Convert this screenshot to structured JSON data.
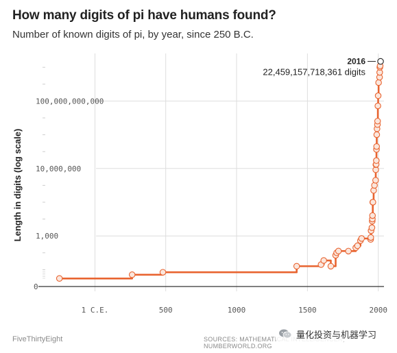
{
  "chart_data": {
    "type": "line",
    "title": "How many digits of pi have humans found?",
    "subtitle": "Number of known digits of pi, by year, since 250 B.C.",
    "xlabel": "",
    "ylabel": "Length in digits (log scale)",
    "yscale": "log",
    "xlim": [
      -350,
      2040
    ],
    "ylim": [
      1,
      10000000000000
    ],
    "grid": true,
    "x_ticks": [
      {
        "value": 1,
        "label": "1 C.E."
      },
      {
        "value": 500,
        "label": "500"
      },
      {
        "value": 1000,
        "label": "1000"
      },
      {
        "value": 1500,
        "label": "1500"
      },
      {
        "value": 2000,
        "label": "2000"
      }
    ],
    "y_ticks": [
      {
        "value": 1,
        "label": "0"
      },
      {
        "value": 1000,
        "label": "1,000"
      },
      {
        "value": 10000000,
        "label": "10,000,000"
      },
      {
        "value": 100000000000,
        "label": "100,000,000,000"
      }
    ],
    "series": [
      {
        "color": "#e8632f",
        "x": [
          -250,
          263,
          480,
          1424,
          1596,
          1615,
          1665,
          1699,
          1706,
          1719,
          1789,
          1841,
          1853,
          1874,
          1882,
          1946,
          1947,
          1949,
          1955,
          1957,
          1958,
          1959,
          1961,
          1962,
          1967,
          1973,
          1981,
          1982,
          1983,
          1985,
          1986,
          1987,
          1988,
          1989,
          1991,
          1994,
          1995,
          1997,
          1999,
          2002,
          2009,
          2010,
          2011,
          2013,
          2016
        ],
        "y": [
          3,
          5,
          7,
          16,
          20,
          35,
          16,
          71,
          100,
          127,
          126,
          200,
          261,
          527,
          707,
          620,
          808,
          2037,
          3089,
          7480,
          10000,
          16167,
          100265,
          100265,
          500000,
          1001250,
          2000036,
          8388576,
          16777206,
          17526200,
          29360111,
          134214700,
          201326551,
          1011196691,
          2260000000,
          4044000000,
          6442450938,
          51539600000,
          206158430000,
          1241100000000,
          2576980377524,
          5000000000000,
          10000000000000,
          12100000000050,
          22459157718361
        ]
      }
    ],
    "annotation": {
      "year": "2016",
      "text": "22,459,157,718,361 digits"
    }
  },
  "footer": {
    "brand": "FiveThirtyEight",
    "sources": "SOURCES: MATHEMATICAL INTELLIGENCER, NUMBERWORLD.ORG"
  },
  "watermark": {
    "text": "量化投资与机器学习",
    "icon": "wechat-icon"
  },
  "colors": {
    "line": "#e8632f",
    "marker_fill": "#fbe6dc",
    "grid": "#dddddd",
    "axis": "#333333"
  }
}
